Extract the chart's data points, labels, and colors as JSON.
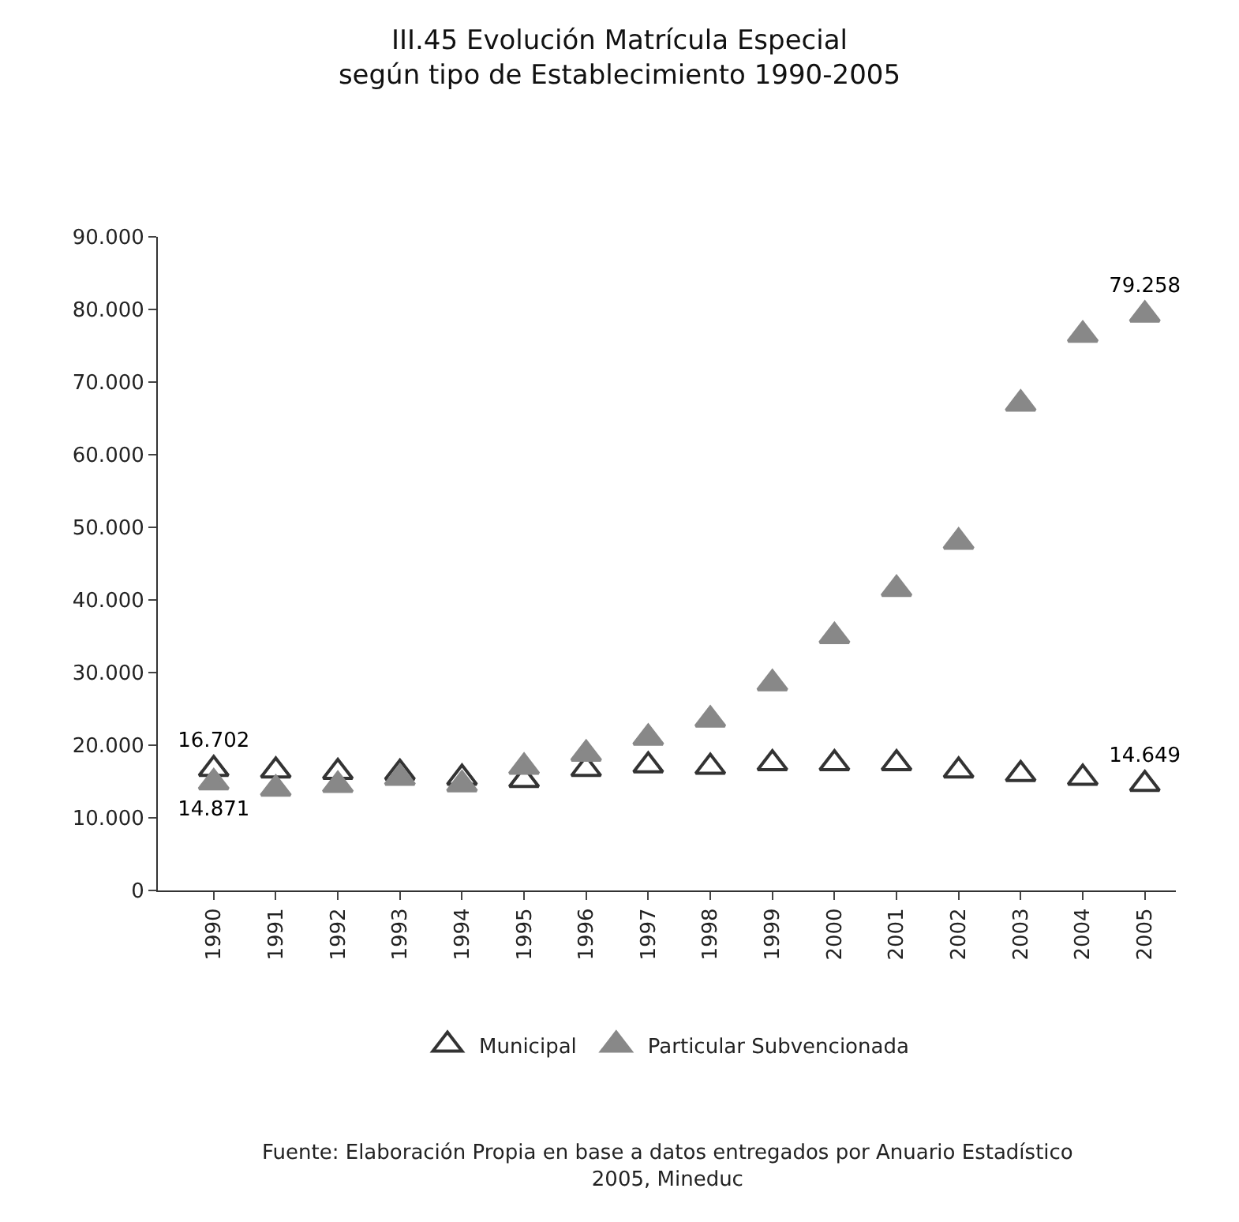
{
  "chart_data": {
    "type": "scatter",
    "title": "III.45 Evolución Matrícula Especial\nsegún tipo de Establecimiento 1990-2005",
    "categories": [
      "1990",
      "1991",
      "1992",
      "1993",
      "1994",
      "1995",
      "1996",
      "1997",
      "1998",
      "1999",
      "2000",
      "2001",
      "2002",
      "2003",
      "2004",
      "2005"
    ],
    "series": [
      {
        "name": "Municipal",
        "color": "#333333",
        "marker": "triangle-open",
        "values": [
          16702,
          16500,
          16300,
          16200,
          15500,
          15200,
          16700,
          17200,
          17000,
          17500,
          17500,
          17500,
          16500,
          16000,
          15500,
          14649
        ],
        "value_labels": [
          "16.702",
          null,
          null,
          null,
          null,
          null,
          null,
          null,
          null,
          null,
          null,
          null,
          null,
          null,
          null,
          "14.649"
        ]
      },
      {
        "name": "Particular Subvencionada",
        "color": "#888888",
        "marker": "triangle",
        "values": [
          14871,
          14000,
          14500,
          15500,
          14600,
          17000,
          18800,
          21000,
          23500,
          28500,
          35000,
          41500,
          48000,
          67000,
          76500,
          79258
        ],
        "value_labels": [
          "14.871",
          null,
          null,
          null,
          null,
          null,
          null,
          null,
          null,
          null,
          null,
          null,
          null,
          null,
          null,
          "79.258"
        ]
      }
    ],
    "ylim": [
      0,
      90000
    ],
    "yticks": [
      0,
      {
        "value": 10000,
        "label": "10.000"
      },
      {
        "value": 20000,
        "label": "20.000"
      },
      {
        "value": 30000,
        "label": "30.000"
      },
      {
        "value": 40000,
        "label": "40.000"
      },
      {
        "value": 50000,
        "label": "50.000"
      },
      {
        "value": 60000,
        "label": "60.000"
      },
      {
        "value": 70000,
        "label": "70.000"
      },
      {
        "value": 80000,
        "label": "80.000"
      },
      {
        "value": 90000,
        "label": "90.000"
      }
    ],
    "grid": false,
    "legend": "bottom",
    "annotations": [
      "Fuente: Elaboración Propia en base a datos entregados por Anuario Estadístico\n2005, Mineduc"
    ]
  }
}
